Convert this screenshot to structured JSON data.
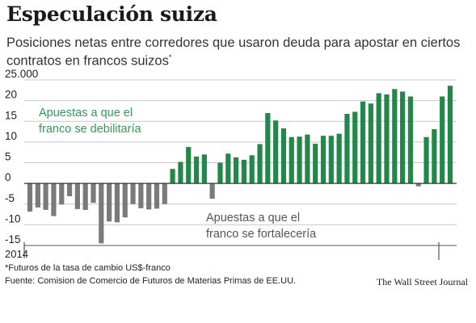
{
  "header": {
    "title": "Especulación suiza",
    "subtitle": "Posiciones netas entre corredores que usaron deuda para apostar en ciertos contratos en francos suizos",
    "subtitle_mark": "*"
  },
  "footer": {
    "note": "*Futuros de la tasa de cambio US$-franco",
    "source": "Fuente: Comision de Comercio de Futuros de Materias Primas de EE.UU.",
    "credit": "The Wall Street Journal"
  },
  "colors": {
    "positive": "#22884a",
    "negative": "#7a7a7a",
    "zero_line": "#333333",
    "grid": "#c8c8c8"
  },
  "chart_data": {
    "type": "bar",
    "title": "Especulación suiza",
    "ylim": [
      -15000,
      25000
    ],
    "yticks": [
      {
        "value": 25000,
        "label": "25.000"
      },
      {
        "value": 20000,
        "label": "20"
      },
      {
        "value": 15000,
        "label": "15"
      },
      {
        "value": 10000,
        "label": "10"
      },
      {
        "value": 5000,
        "label": "5"
      },
      {
        "value": 0,
        "label": "0"
      },
      {
        "value": -5000,
        "label": "-5"
      },
      {
        "value": -10000,
        "label": "-10"
      },
      {
        "value": -15000,
        "label": "-15"
      }
    ],
    "xlabel_start": "2014",
    "annotations": [
      {
        "lines": [
          "Apuestas a que el",
          "franco se debilitaría"
        ],
        "sign": "positive"
      },
      {
        "lines": [
          "Apuestas a que el",
          "franco se fortalecería"
        ],
        "sign": "negative"
      }
    ],
    "grid": true,
    "values": [
      -6800,
      -5800,
      -6400,
      -7900,
      -5100,
      -3100,
      -6200,
      -6400,
      -4700,
      -14500,
      -9200,
      -9400,
      -8200,
      -5000,
      -6000,
      -6300,
      -6100,
      -5000,
      3500,
      5200,
      8800,
      6500,
      7000,
      -3700,
      5000,
      7200,
      6300,
      5700,
      6800,
      9500,
      17000,
      15200,
      13300,
      11200,
      11300,
      11800,
      9600,
      11500,
      11500,
      12000,
      16800,
      17300,
      19800,
      19300,
      21800,
      21500,
      22800,
      22200,
      21000,
      -700,
      11200,
      13100,
      21000,
      23600
    ]
  }
}
